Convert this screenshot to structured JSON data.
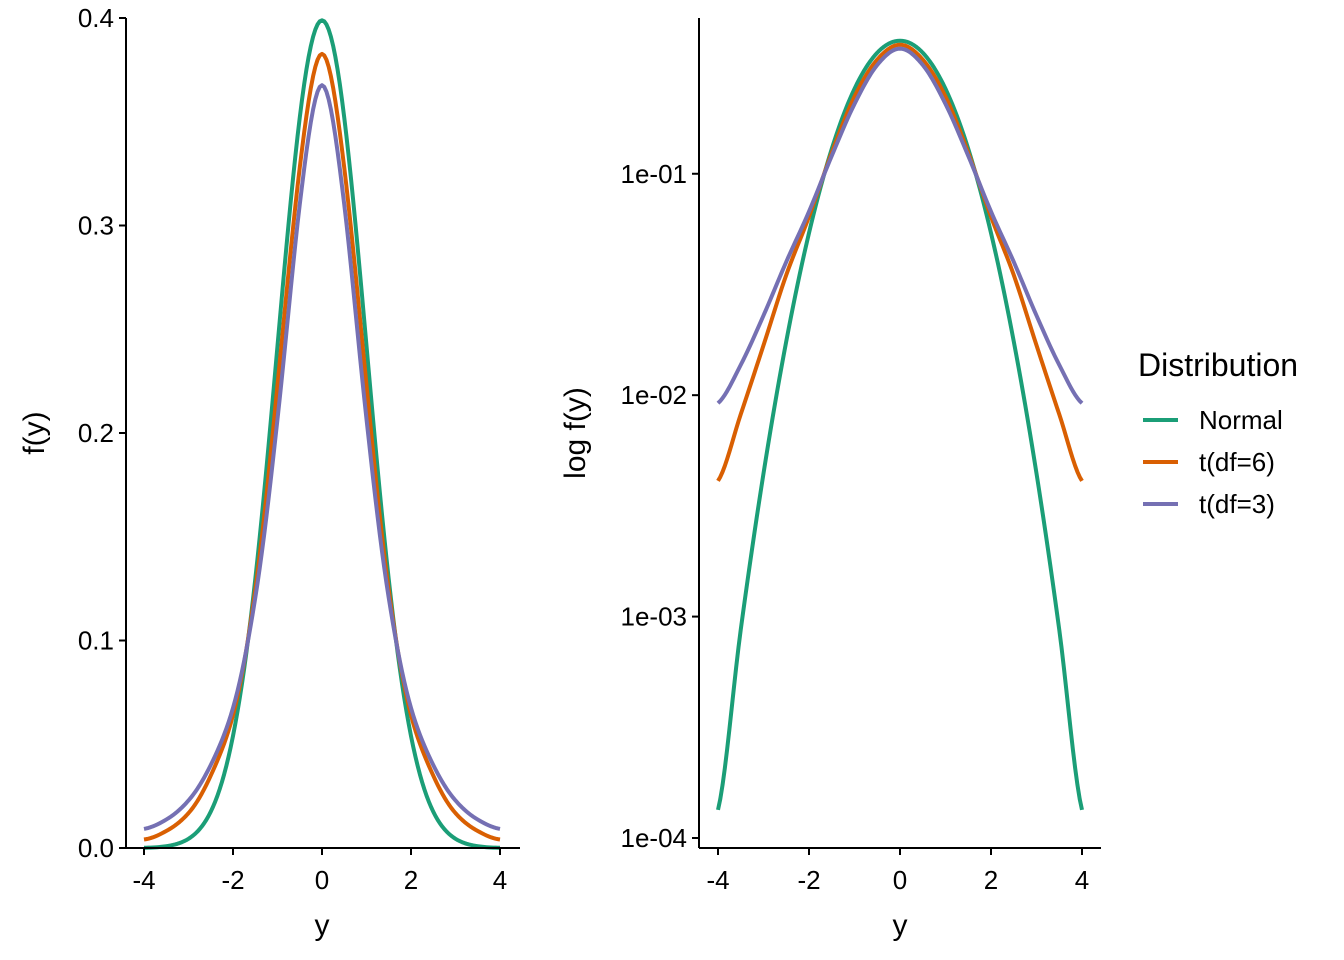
{
  "chart_data": [
    {
      "type": "line",
      "panel": "left",
      "xlabel": "y",
      "ylabel": "f(y)",
      "xlim": [
        -4,
        4
      ],
      "ylim": [
        0,
        0.4
      ],
      "xticks": [
        "-4",
        "-2",
        "0",
        "2",
        "4"
      ],
      "yticks": [
        "0.0",
        "0.1",
        "0.2",
        "0.3",
        "0.4"
      ],
      "y_scale": "linear",
      "grid": false,
      "series": [
        {
          "name": "Normal",
          "color": "#1B9E77",
          "x": [
            -4,
            -3.5,
            -3,
            -2.5,
            -2,
            -1.5,
            -1,
            -0.5,
            0,
            0.5,
            1,
            1.5,
            2,
            2.5,
            3,
            3.5,
            4
          ],
          "values": [
            0.00013,
            0.00087,
            0.00443,
            0.0175,
            0.054,
            0.1295,
            0.242,
            0.352,
            0.3989,
            0.352,
            0.242,
            0.1295,
            0.054,
            0.0175,
            0.00443,
            0.00087,
            0.00013
          ]
        },
        {
          "name": "t(df=6)",
          "color": "#D95F02",
          "x": [
            -4,
            -3.5,
            -3,
            -2.5,
            -2,
            -1.5,
            -1,
            -0.5,
            0,
            0.5,
            1,
            1.5,
            2,
            2.5,
            3,
            3.5,
            4
          ],
          "values": [
            0.0041,
            0.0082,
            0.0168,
            0.0349,
            0.064,
            0.1244,
            0.2231,
            0.3279,
            0.3827,
            0.3279,
            0.2231,
            0.1244,
            0.064,
            0.0349,
            0.0168,
            0.0082,
            0.0041
          ]
        },
        {
          "name": "t(df=3)",
          "color": "#7570B3",
          "x": [
            -4,
            -3.5,
            -3,
            -2.5,
            -2,
            -1.5,
            -1,
            -0.5,
            0,
            0.5,
            1,
            1.5,
            2,
            2.5,
            3,
            3.5,
            4
          ],
          "values": [
            0.0092,
            0.0137,
            0.0229,
            0.04,
            0.0675,
            0.1205,
            0.2067,
            0.3101,
            0.3676,
            0.3101,
            0.2067,
            0.1205,
            0.0675,
            0.04,
            0.0229,
            0.0137,
            0.0092
          ]
        }
      ]
    },
    {
      "type": "line",
      "panel": "right",
      "xlabel": "y",
      "ylabel": "log f(y)",
      "xlim": [
        -4,
        4
      ],
      "ylim": [
        0.0001,
        0.5
      ],
      "xticks": [
        "-4",
        "-2",
        "0",
        "2",
        "4"
      ],
      "yticks": [
        "1e-04",
        "1e-03",
        "1e-02",
        "1e-01"
      ],
      "y_scale": "log10",
      "grid": false,
      "series": [
        {
          "name": "Normal",
          "color": "#1B9E77",
          "x": [
            -4,
            -3.5,
            -3,
            -2.5,
            -2,
            -1.5,
            -1,
            -0.5,
            0,
            0.5,
            1,
            1.5,
            2,
            2.5,
            3,
            3.5,
            4
          ],
          "values": [
            0.000134,
            0.000873,
            0.00443,
            0.0175,
            0.054,
            0.1295,
            0.242,
            0.352,
            0.3989,
            0.352,
            0.242,
            0.1295,
            0.054,
            0.0175,
            0.00443,
            0.000873,
            0.000134
          ]
        },
        {
          "name": "t(df=6)",
          "color": "#D95F02",
          "x": [
            -4,
            -3.5,
            -3,
            -2.5,
            -2,
            -1.5,
            -1,
            -0.5,
            0,
            0.5,
            1,
            1.5,
            2,
            2.5,
            3,
            3.5,
            4
          ],
          "values": [
            0.0041,
            0.0082,
            0.0168,
            0.0349,
            0.064,
            0.1244,
            0.2231,
            0.3279,
            0.3827,
            0.3279,
            0.2231,
            0.1244,
            0.064,
            0.0349,
            0.0168,
            0.0082,
            0.0041
          ]
        },
        {
          "name": "t(df=3)",
          "color": "#7570B3",
          "x": [
            -4,
            -3.5,
            -3,
            -2.5,
            -2,
            -1.5,
            -1,
            -0.5,
            0,
            0.5,
            1,
            1.5,
            2,
            2.5,
            3,
            3.5,
            4
          ],
          "values": [
            0.0092,
            0.0137,
            0.0229,
            0.04,
            0.0675,
            0.1205,
            0.2067,
            0.3101,
            0.3676,
            0.3101,
            0.2067,
            0.1205,
            0.0675,
            0.04,
            0.0229,
            0.0137,
            0.0092
          ]
        }
      ]
    }
  ],
  "legend": {
    "title": "Distribution",
    "placement": "right",
    "items": [
      {
        "label": "Normal",
        "color": "#1B9E77"
      },
      {
        "label": "t(df=6)",
        "color": "#D95F02"
      },
      {
        "label": "t(df=3)",
        "color": "#7570B3"
      }
    ]
  }
}
